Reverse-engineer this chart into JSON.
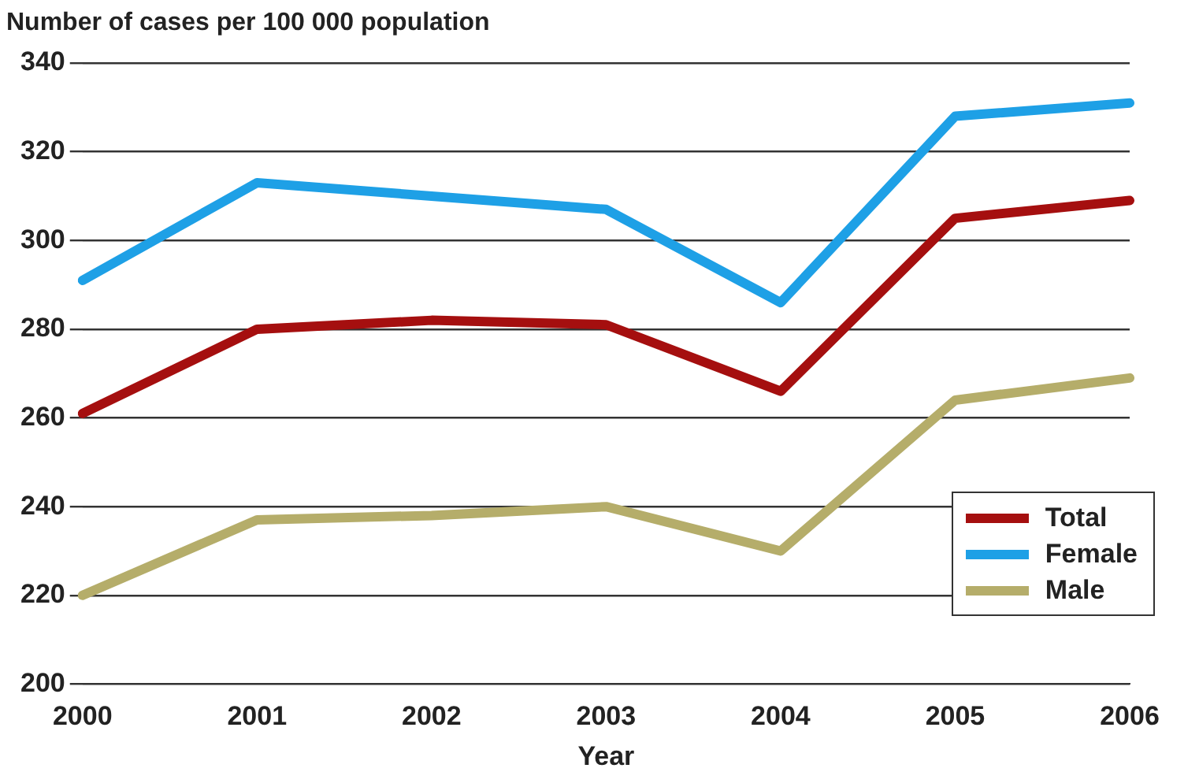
{
  "chart_data": {
    "type": "line",
    "ylabel": "Number of cases per 100 000 population",
    "xlabel": "Year",
    "categories": [
      "2000",
      "2001",
      "2002",
      "2003",
      "2004",
      "2005",
      "2006"
    ],
    "series": [
      {
        "name": "Total",
        "color": "#a50f0f",
        "values": [
          261,
          280,
          282,
          281,
          266,
          305,
          309
        ]
      },
      {
        "name": "Female",
        "color": "#1ea0e6",
        "values": [
          291,
          313,
          310,
          307,
          286,
          328,
          331
        ]
      },
      {
        "name": "Male",
        "color": "#b5ad6a",
        "values": [
          220,
          237,
          238,
          240,
          230,
          264,
          269
        ]
      }
    ],
    "ylim": [
      200,
      340
    ],
    "yticks": [
      200,
      220,
      240,
      260,
      280,
      300,
      320,
      340
    ],
    "grid": "y",
    "legend": "bottom right",
    "marker": "none",
    "line_style": "solid"
  }
}
